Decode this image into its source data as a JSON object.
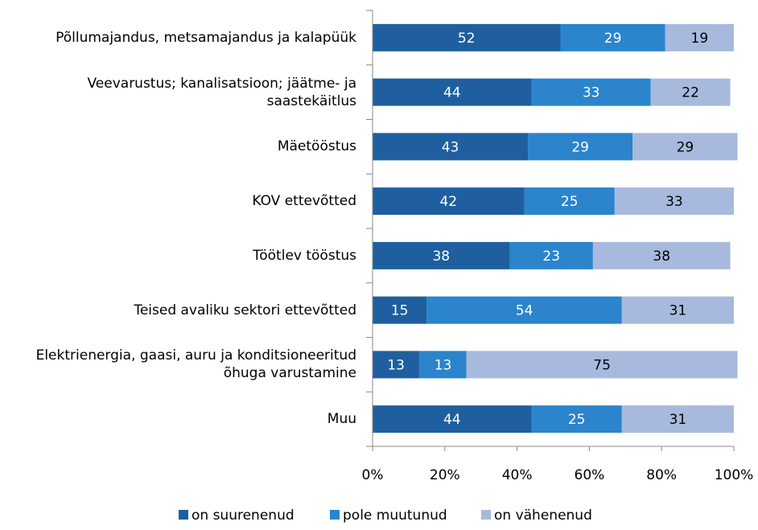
{
  "chart_data": {
    "type": "stacked_barh",
    "categories": [
      "Põllumajandus, metsamajandus ja kalapüük",
      "Veevarustus; kanalisatsioon; jäätme- ja saastekäitlus",
      "Mäetööstus",
      "KOV ettevõtted",
      "Töötlev tööstus",
      "Teised avaliku sektori ettevõtted",
      "Elektrienergia, gaasi, auru ja konditsioneeritud õhuga varustamine",
      "Muu"
    ],
    "series": [
      {
        "name": "on suurenenud",
        "color": "#1f5f9f",
        "values": [
          52,
          44,
          43,
          42,
          38,
          15,
          13,
          44
        ]
      },
      {
        "name": "pole muutunud",
        "color": "#2b84cc",
        "values": [
          29,
          33,
          29,
          25,
          23,
          54,
          13,
          25
        ]
      },
      {
        "name": "on vähenenud",
        "color": "#a7badd",
        "values": [
          19,
          22,
          29,
          33,
          38,
          31,
          75,
          31
        ]
      }
    ],
    "xlim": [
      0,
      100
    ],
    "xticks": [
      {
        "value": 0,
        "label": "0%"
      },
      {
        "value": 20,
        "label": "20%"
      },
      {
        "value": 40,
        "label": "40%"
      },
      {
        "value": 60,
        "label": "60%"
      },
      {
        "value": 80,
        "label": "80%"
      },
      {
        "value": 100,
        "label": "100%"
      }
    ],
    "legend": "bottom"
  }
}
